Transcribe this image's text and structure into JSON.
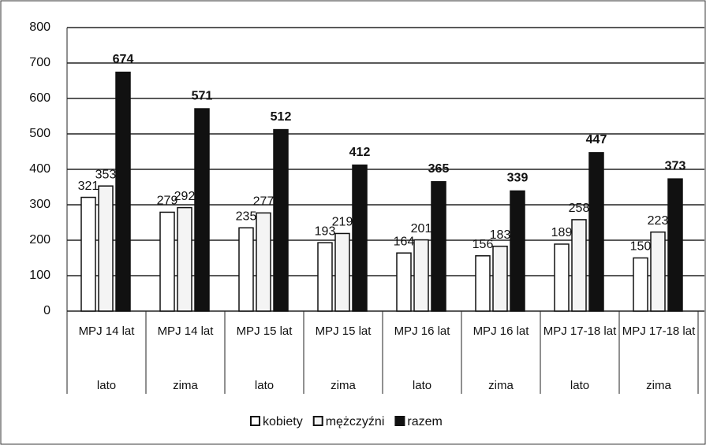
{
  "chart_data": {
    "type": "bar",
    "categories": [
      "MPJ 14 lat",
      "MPJ 14 lat",
      "MPJ 15 lat",
      "MPJ 15 lat",
      "MPJ 16 lat",
      "MPJ 16 lat",
      "MPJ 17-18 lat",
      "MPJ 17-18 lat"
    ],
    "groups": [
      "lato",
      "zima",
      "lato",
      "zima",
      "lato",
      "zima",
      "lato",
      "zima"
    ],
    "series": [
      {
        "name": "kobiety",
        "color": "#ffffff",
        "values": [
          321,
          279,
          235,
          193,
          164,
          156,
          189,
          150
        ]
      },
      {
        "name": "mężczyźni",
        "color": "#f4f4f4",
        "values": [
          353,
          292,
          277,
          219,
          201,
          183,
          258,
          223
        ]
      },
      {
        "name": "razem",
        "color": "#111111",
        "values": [
          674,
          571,
          512,
          412,
          365,
          339,
          447,
          373
        ]
      }
    ],
    "ylim": [
      0,
      800
    ],
    "yticks": [
      0,
      100,
      200,
      300,
      400,
      500,
      600,
      700,
      800
    ],
    "grid": true,
    "legend": "bottom"
  }
}
